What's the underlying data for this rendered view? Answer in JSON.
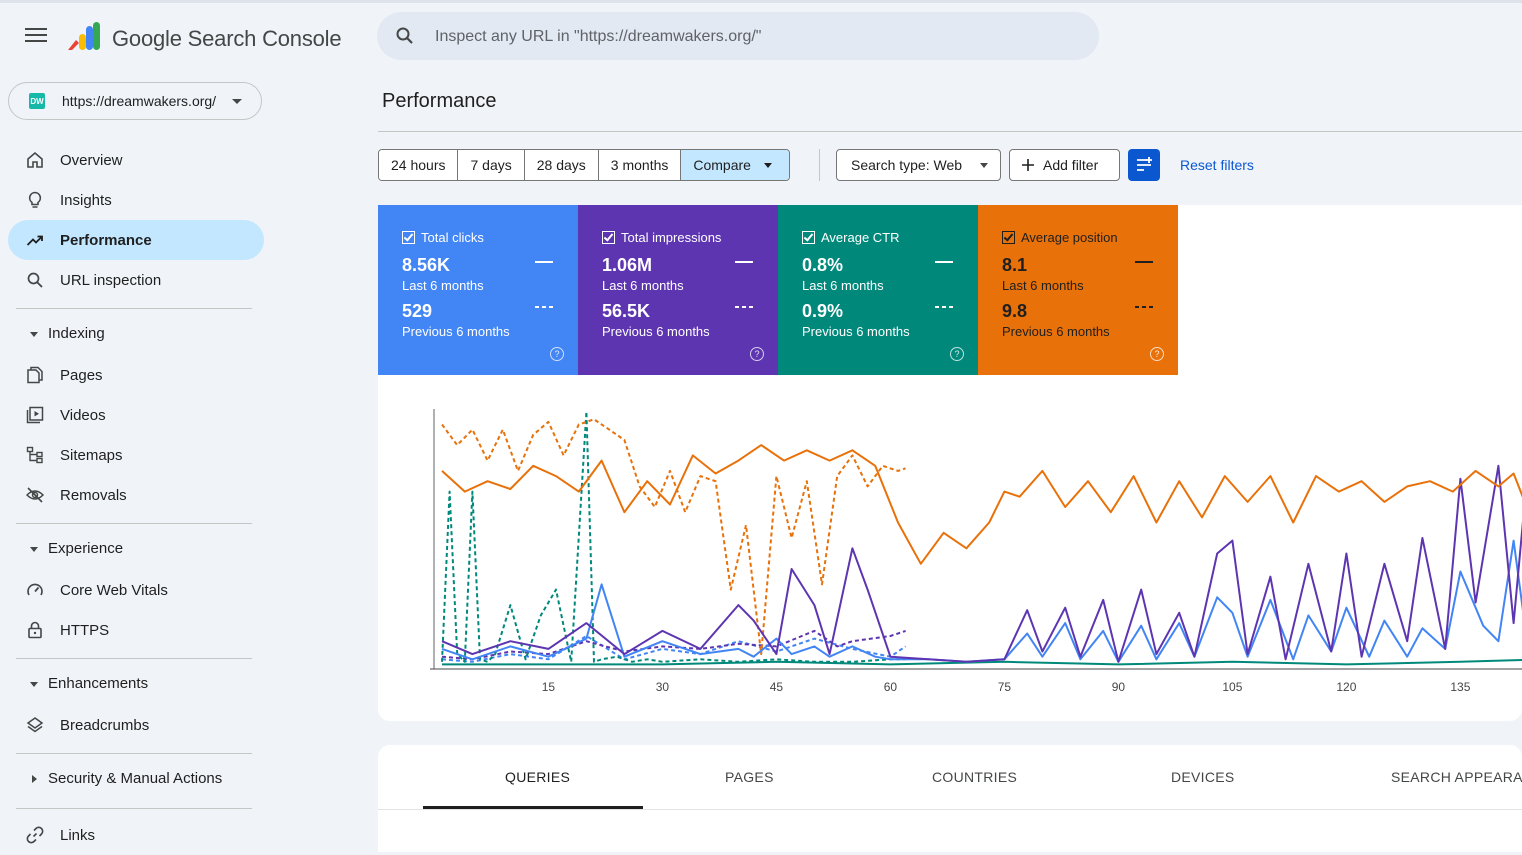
{
  "app": {
    "title": "Google Search Console"
  },
  "property": {
    "url": "https://dreamwakers.org/",
    "favicon_text": "DW"
  },
  "search": {
    "placeholder": "Inspect any URL in \"https://dreamwakers.org/\""
  },
  "sidebar": {
    "items": [
      {
        "label": "Overview",
        "icon": "home-icon"
      },
      {
        "label": "Insights",
        "icon": "lightbulb-icon"
      },
      {
        "label": "Performance",
        "icon": "trending-up-icon",
        "active": true
      },
      {
        "label": "URL inspection",
        "icon": "search-icon"
      }
    ],
    "sections": [
      {
        "label": "Indexing",
        "expanded": true,
        "items": [
          {
            "label": "Pages",
            "icon": "pages-icon"
          },
          {
            "label": "Videos",
            "icon": "video-icon"
          },
          {
            "label": "Sitemaps",
            "icon": "sitemap-icon"
          },
          {
            "label": "Removals",
            "icon": "eye-off-icon"
          }
        ]
      },
      {
        "label": "Experience",
        "expanded": true,
        "items": [
          {
            "label": "Core Web Vitals",
            "icon": "speed-icon"
          },
          {
            "label": "HTTPS",
            "icon": "lock-icon"
          }
        ]
      },
      {
        "label": "Enhancements",
        "expanded": true,
        "items": [
          {
            "label": "Breadcrumbs",
            "icon": "layers-icon"
          }
        ]
      },
      {
        "label": "Security & Manual Actions",
        "expanded": false,
        "items": []
      }
    ],
    "links": {
      "label": "Links",
      "icon": "link-icon"
    }
  },
  "main": {
    "title": "Performance",
    "date_ranges": [
      "24 hours",
      "7 days",
      "28 days",
      "3 months",
      "Compare"
    ],
    "selected_range": "Compare",
    "search_type": "Search type: Web",
    "add_filter": "Add filter",
    "reset_filters": "Reset filters",
    "metrics": [
      {
        "label": "Total clicks",
        "current": "8.56K",
        "current_period": "Last 6 months",
        "previous": "529",
        "previous_period": "Previous 6 months",
        "color": "#4285f4",
        "checked": true
      },
      {
        "label": "Total impressions",
        "current": "1.06M",
        "current_period": "Last 6 months",
        "previous": "56.5K",
        "previous_period": "Previous 6 months",
        "color": "#5e35b1",
        "checked": true
      },
      {
        "label": "Average CTR",
        "current": "0.8%",
        "current_period": "Last 6 months",
        "previous": "0.9%",
        "previous_period": "Previous 6 months",
        "color": "#00897b",
        "checked": true
      },
      {
        "label": "Average position",
        "current": "8.1",
        "current_period": "Last 6 months",
        "previous": "9.8",
        "previous_period": "Previous 6 months",
        "color": "#e8710a",
        "checked": true
      }
    ],
    "tabs": [
      "QUERIES",
      "PAGES",
      "COUNTRIES",
      "DEVICES",
      "SEARCH APPEARANCE"
    ],
    "active_tab": "QUERIES"
  },
  "chart_data": {
    "type": "line",
    "x_ticks": [
      15,
      30,
      45,
      60,
      75,
      90,
      105,
      120,
      135
    ],
    "xlim": [
      1,
      150
    ],
    "ylim": [
      0,
      1
    ],
    "y_axis_shown": false,
    "grid": false,
    "series": [
      {
        "name": "Total clicks",
        "style": "solid",
        "color": "#4285f4",
        "x": [
          1,
          5,
          10,
          15,
          20,
          22,
          25,
          30,
          35,
          40,
          42,
          45,
          47,
          50,
          52,
          55,
          58,
          60,
          65,
          70,
          75,
          78,
          80,
          83,
          85,
          88,
          90,
          93,
          95,
          98,
          100,
          103,
          105,
          107,
          110,
          113,
          115,
          118,
          120,
          123,
          125,
          128,
          130,
          133,
          135,
          138,
          140,
          142,
          144,
          146
        ],
        "values": [
          0.07,
          0.03,
          0.08,
          0.04,
          0.11,
          0.32,
          0.04,
          0.1,
          0.05,
          0.07,
          0.04,
          0.11,
          0.05,
          0.08,
          0.04,
          0.08,
          0.04,
          0.03,
          0.03,
          0.02,
          0.03,
          0.13,
          0.04,
          0.17,
          0.03,
          0.14,
          0.02,
          0.16,
          0.03,
          0.17,
          0.04,
          0.27,
          0.21,
          0.04,
          0.26,
          0.03,
          0.2,
          0.06,
          0.23,
          0.04,
          0.18,
          0.04,
          0.15,
          0.07,
          0.37,
          0.16,
          0.1,
          0.49,
          0.05,
          0.5
        ]
      },
      {
        "name": "Total impressions",
        "style": "solid",
        "color": "#5e35b1",
        "x": [
          1,
          5,
          10,
          15,
          20,
          25,
          30,
          35,
          40,
          42,
          45,
          47,
          50,
          52,
          55,
          57,
          60,
          65,
          70,
          75,
          78,
          80,
          83,
          85,
          88,
          90,
          93,
          95,
          98,
          100,
          103,
          105,
          107,
          110,
          112,
          115,
          118,
          120,
          122,
          125,
          128,
          130,
          133,
          135,
          137,
          140,
          142,
          144,
          146
        ],
        "values": [
          0.1,
          0.05,
          0.1,
          0.07,
          0.17,
          0.05,
          0.14,
          0.07,
          0.24,
          0.18,
          0.05,
          0.38,
          0.24,
          0.05,
          0.46,
          0.3,
          0.04,
          0.03,
          0.02,
          0.03,
          0.22,
          0.06,
          0.23,
          0.04,
          0.26,
          0.02,
          0.3,
          0.05,
          0.21,
          0.04,
          0.44,
          0.49,
          0.05,
          0.35,
          0.03,
          0.4,
          0.06,
          0.44,
          0.04,
          0.4,
          0.1,
          0.5,
          0.07,
          0.73,
          0.25,
          0.78,
          0.17,
          0.81,
          0.39
        ]
      },
      {
        "name": "Average CTR",
        "style": "solid",
        "color": "#00897b",
        "x": [
          1,
          15,
          30,
          45,
          60,
          75,
          90,
          105,
          120,
          135,
          146
        ],
        "values": [
          0.01,
          0.01,
          0.01,
          0.02,
          0.01,
          0.02,
          0.01,
          0.02,
          0.01,
          0.02,
          0.03
        ]
      },
      {
        "name": "Average position",
        "style": "solid",
        "color": "#e8710a",
        "x": [
          1,
          4,
          7,
          10,
          13,
          16,
          19,
          22,
          25,
          28,
          31,
          34,
          37,
          40,
          43,
          46,
          49,
          52,
          55,
          58,
          61,
          64,
          67,
          70,
          73,
          75,
          77,
          80,
          83,
          86,
          89,
          92,
          95,
          98,
          101,
          104,
          107,
          110,
          113,
          116,
          119,
          122,
          125,
          128,
          131,
          134,
          137,
          140,
          142,
          144,
          146
        ],
        "values": [
          0.76,
          0.68,
          0.72,
          0.69,
          0.78,
          0.74,
          0.68,
          0.8,
          0.6,
          0.72,
          0.63,
          0.82,
          0.75,
          0.8,
          0.86,
          0.8,
          0.84,
          0.8,
          0.84,
          0.78,
          0.56,
          0.4,
          0.52,
          0.46,
          0.56,
          0.68,
          0.66,
          0.76,
          0.62,
          0.72,
          0.6,
          0.74,
          0.56,
          0.72,
          0.58,
          0.74,
          0.64,
          0.74,
          0.56,
          0.74,
          0.68,
          0.72,
          0.64,
          0.7,
          0.72,
          0.68,
          0.76,
          0.7,
          0.75,
          0.6,
          0.68
        ]
      },
      {
        "name": "Total clicks (previous)",
        "style": "dashed",
        "color": "#4285f4",
        "x": [
          1,
          5,
          10,
          15,
          20,
          25,
          30,
          35,
          40,
          45,
          50,
          55,
          60,
          62
        ],
        "values": [
          0.03,
          0.02,
          0.05,
          0.03,
          0.12,
          0.03,
          0.07,
          0.05,
          0.1,
          0.06,
          0.11,
          0.07,
          0.04,
          0.08
        ]
      },
      {
        "name": "Total impressions (previous)",
        "style": "dashed",
        "color": "#5e35b1",
        "x": [
          1,
          5,
          10,
          15,
          20,
          25,
          30,
          35,
          40,
          45,
          50,
          53,
          55,
          60,
          62
        ],
        "values": [
          0.04,
          0.03,
          0.06,
          0.05,
          0.1,
          0.06,
          0.08,
          0.07,
          0.09,
          0.08,
          0.14,
          0.08,
          0.1,
          0.12,
          0.14
        ]
      },
      {
        "name": "Average CTR (previous)",
        "style": "dashed",
        "color": "#00897b",
        "x": [
          1,
          2,
          3,
          4,
          5,
          6,
          7,
          8,
          10,
          12,
          14,
          16,
          18,
          20,
          21,
          22,
          24,
          26,
          28,
          30,
          35,
          40,
          45,
          50,
          55,
          60,
          62
        ],
        "values": [
          0.02,
          0.68,
          0.05,
          0.02,
          0.68,
          0.03,
          0.02,
          0.05,
          0.24,
          0.03,
          0.2,
          0.3,
          0.02,
          0.99,
          0.02,
          0.03,
          0.04,
          0.02,
          0.03,
          0.02,
          0.03,
          0.02,
          0.03,
          0.02,
          0.02,
          0.03,
          0.03
        ]
      },
      {
        "name": "Average position (previous)",
        "style": "dashed",
        "color": "#e8710a",
        "x": [
          1,
          3,
          5,
          7,
          9,
          11,
          13,
          15,
          17,
          19,
          21,
          23,
          25,
          27,
          29,
          31,
          33,
          35,
          37,
          39,
          41,
          43,
          45,
          47,
          49,
          51,
          53,
          55,
          57,
          59,
          61,
          62
        ],
        "values": [
          0.94,
          0.86,
          0.92,
          0.8,
          0.92,
          0.76,
          0.9,
          0.95,
          0.82,
          0.94,
          0.96,
          0.92,
          0.88,
          0.7,
          0.62,
          0.76,
          0.6,
          0.74,
          0.72,
          0.3,
          0.55,
          0.05,
          0.74,
          0.5,
          0.72,
          0.32,
          0.74,
          0.82,
          0.7,
          0.78,
          0.76,
          0.77
        ]
      }
    ]
  }
}
